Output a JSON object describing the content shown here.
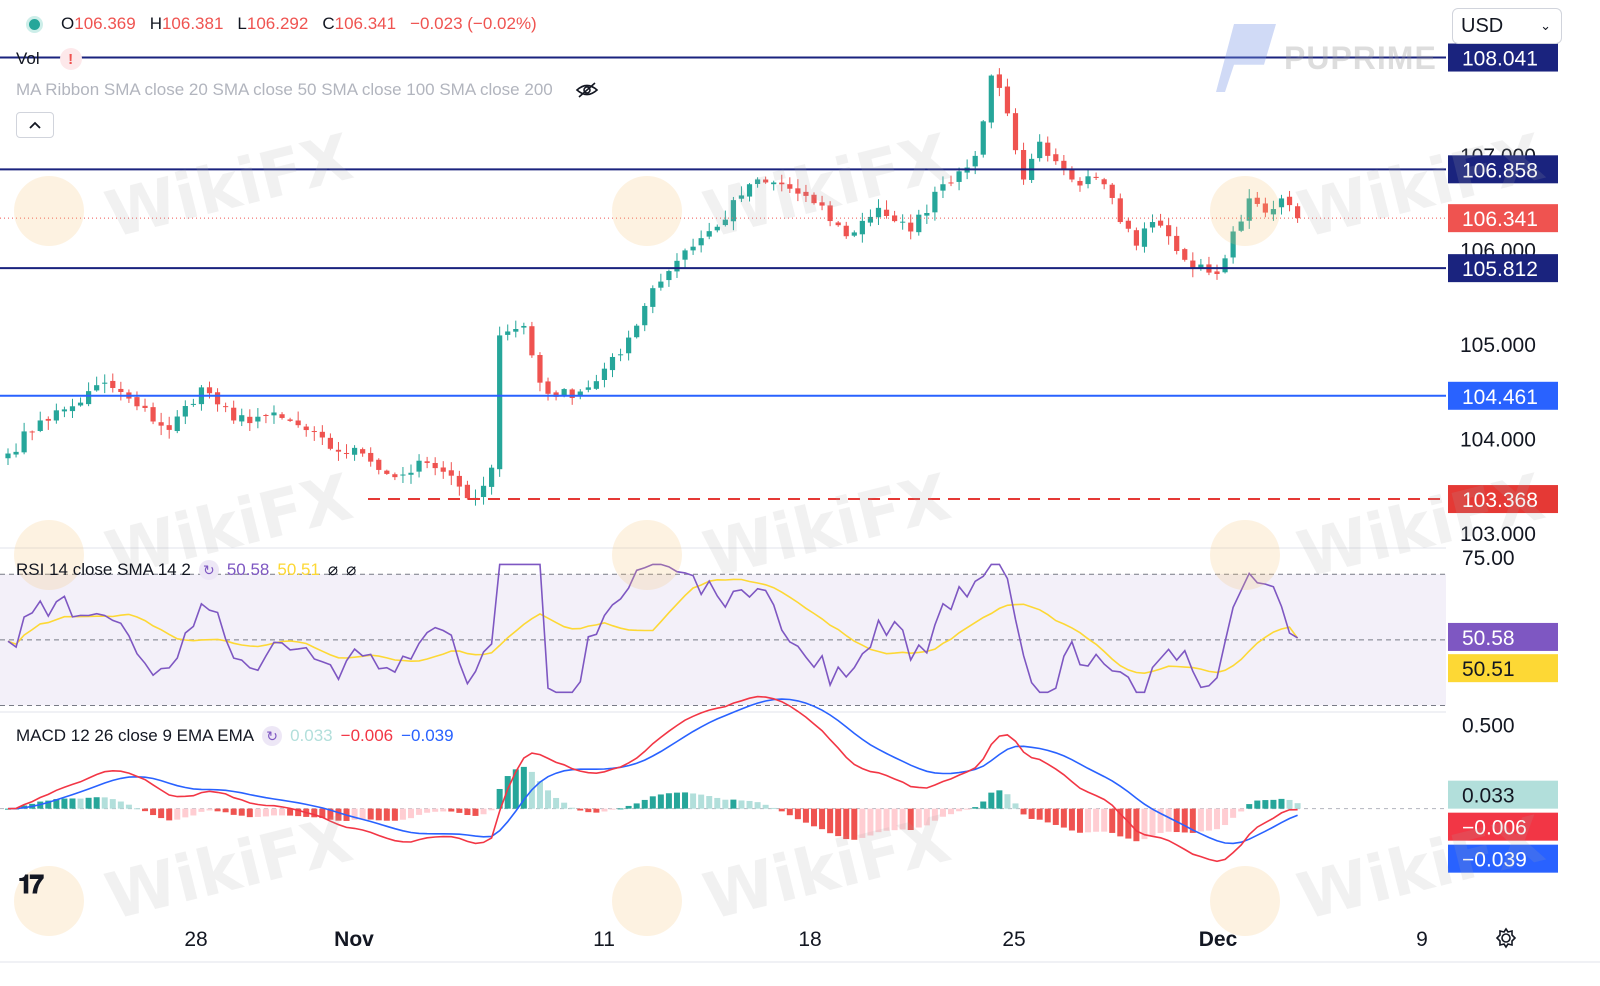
{
  "header": {
    "ohlc": [
      {
        "key": "O",
        "value": "106.369"
      },
      {
        "key": "H",
        "value": "106.381"
      },
      {
        "key": "L",
        "value": "106.292"
      },
      {
        "key": "C",
        "value": "106.341"
      }
    ],
    "change": "−0.023 (−0.02%)",
    "vol_label": "Vol",
    "vol_warning": "!",
    "ma_label": "MA Ribbon SMA close 20 SMA close 50 SMA close 100 SMA close 200",
    "currency": "USD",
    "brand": "PUPRIME",
    "watermark": "WikiFX"
  },
  "icons": {
    "status_dot": "status-dot-icon",
    "eye": "eye-crossed-icon",
    "collapse": "chevron-up-icon",
    "cycle": "cycle-icon",
    "settings": "gear-icon",
    "logo": "tradingview-logo-icon",
    "chevron": "chevron-down-icon"
  },
  "colors": {
    "up": "#26a69a",
    "down": "#ef5350",
    "level_line": "#1a237e",
    "support_line": "#2962ff",
    "dashed_level": "#e53935",
    "rsi": "#7e57c2",
    "rsi_ma": "#fdd835",
    "macd": "#2962ff",
    "signal": "#f23645"
  },
  "chart_data": [
    {
      "type": "candlestick",
      "series_name": "Price",
      "y_ticks": [
        "103.000",
        "104.000",
        "105.000",
        "106.000",
        "107.000"
      ],
      "x_ticks": [
        "28",
        "Nov",
        "11",
        "18",
        "25",
        "Dec",
        "9"
      ],
      "ylim": [
        102.85,
        108.65
      ],
      "last_price": "106.341",
      "levels": [
        {
          "value": 108.041,
          "label": "108.041",
          "style": "solid",
          "color": "#1a237e"
        },
        {
          "value": 106.858,
          "label": "106.858",
          "style": "solid",
          "color": "#1a237e"
        },
        {
          "value": 105.812,
          "label": "105.812",
          "style": "solid",
          "color": "#1a237e"
        },
        {
          "value": 104.461,
          "label": "104.461",
          "style": "solid",
          "color": "#2962ff"
        },
        {
          "value": 103.368,
          "label": "103.368",
          "style": "dashed",
          "color": "#e53935"
        }
      ],
      "anchors": [
        [
          0,
          103.85
        ],
        [
          4,
          104.2
        ],
        [
          8,
          104.35
        ],
        [
          12,
          104.6
        ],
        [
          16,
          104.35
        ],
        [
          20,
          104.1
        ],
        [
          24,
          104.55
        ],
        [
          28,
          104.2
        ],
        [
          32,
          104.25
        ],
        [
          36,
          104.15
        ],
        [
          40,
          103.9
        ],
        [
          44,
          103.85
        ],
        [
          48,
          103.6
        ],
        [
          52,
          103.75
        ],
        [
          56,
          103.5
        ],
        [
          58,
          103.38
        ],
        [
          60,
          103.7
        ],
        [
          61,
          105.1
        ],
        [
          64,
          105.2
        ],
        [
          66,
          104.6
        ],
        [
          68,
          104.45
        ],
        [
          72,
          104.55
        ],
        [
          76,
          104.9
        ],
        [
          80,
          105.6
        ],
        [
          84,
          106.0
        ],
        [
          88,
          106.25
        ],
        [
          92,
          106.7
        ],
        [
          96,
          106.7
        ],
        [
          100,
          106.5
        ],
        [
          104,
          106.15
        ],
        [
          108,
          106.45
        ],
        [
          112,
          106.2
        ],
        [
          116,
          106.7
        ],
        [
          120,
          107.0
        ],
        [
          122,
          107.85
        ],
        [
          124,
          107.45
        ],
        [
          126,
          106.75
        ],
        [
          128,
          107.15
        ],
        [
          132,
          106.75
        ],
        [
          136,
          106.7
        ],
        [
          138,
          106.3
        ],
        [
          140,
          106.05
        ],
        [
          142,
          106.3
        ],
        [
          144,
          106.15
        ],
        [
          146,
          105.9
        ],
        [
          148,
          105.85
        ],
        [
          150,
          105.75
        ],
        [
          152,
          106.2
        ],
        [
          154,
          106.55
        ],
        [
          156,
          106.4
        ],
        [
          158,
          106.55
        ],
        [
          160,
          106.341
        ]
      ],
      "candle_count": 161
    },
    {
      "type": "line",
      "title": "RSI 14 close SMA 14 2",
      "series": [
        {
          "name": "RSI",
          "value_label": "50.58",
          "value": 50.58
        },
        {
          "name": "SMA",
          "value_label": "50.51",
          "value": 50.51
        }
      ],
      "y_ticks": [
        "75.00"
      ],
      "band": [
        30,
        70
      ],
      "mid": 50,
      "ylim": [
        28,
        78
      ]
    },
    {
      "type": "line",
      "title": "MACD 12 26 close 9 EMA EMA",
      "series": [
        {
          "name": "Histogram",
          "value_label": "0.033",
          "value": 0.033
        },
        {
          "name": "MACD",
          "value_label": "−0.006",
          "value": -0.006
        },
        {
          "name": "Signal",
          "value_label": "−0.039",
          "value": -0.039
        }
      ],
      "y_ticks": [
        "0.500"
      ],
      "ylim": [
        -0.62,
        0.58
      ]
    }
  ]
}
